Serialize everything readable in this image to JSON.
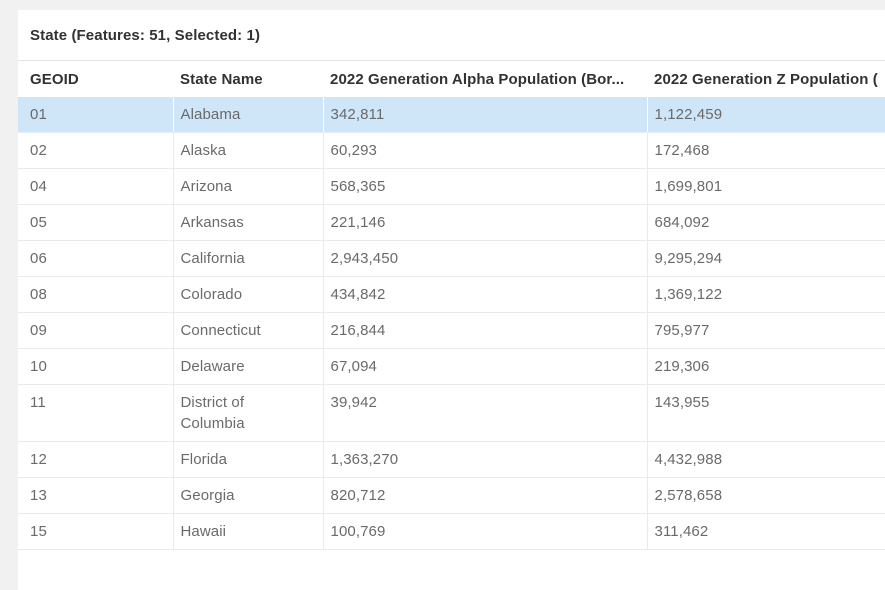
{
  "header": {
    "title": "State (Features: 51, Selected: 1)"
  },
  "table": {
    "columns": [
      {
        "key": "geoid",
        "label": "GEOID"
      },
      {
        "key": "state_name",
        "label": "State Name"
      },
      {
        "key": "gen_alpha",
        "label": "2022 Generation Alpha Population (Bor..."
      },
      {
        "key": "gen_z",
        "label": "2022 Generation Z Population ("
      }
    ],
    "rows": [
      {
        "geoid": "01",
        "state_name": "Alabama",
        "gen_alpha": "342,811",
        "gen_z": "1,122,459",
        "selected": true
      },
      {
        "geoid": "02",
        "state_name": "Alaska",
        "gen_alpha": "60,293",
        "gen_z": "172,468",
        "selected": false
      },
      {
        "geoid": "04",
        "state_name": "Arizona",
        "gen_alpha": "568,365",
        "gen_z": "1,699,801",
        "selected": false
      },
      {
        "geoid": "05",
        "state_name": "Arkansas",
        "gen_alpha": "221,146",
        "gen_z": "684,092",
        "selected": false
      },
      {
        "geoid": "06",
        "state_name": "California",
        "gen_alpha": "2,943,450",
        "gen_z": "9,295,294",
        "selected": false
      },
      {
        "geoid": "08",
        "state_name": "Colorado",
        "gen_alpha": "434,842",
        "gen_z": "1,369,122",
        "selected": false
      },
      {
        "geoid": "09",
        "state_name": "Connecticut",
        "gen_alpha": "216,844",
        "gen_z": "795,977",
        "selected": false
      },
      {
        "geoid": "10",
        "state_name": "Delaware",
        "gen_alpha": "67,094",
        "gen_z": "219,306",
        "selected": false
      },
      {
        "geoid": "11",
        "state_name": "District of Columbia",
        "gen_alpha": "39,942",
        "gen_z": "143,955",
        "selected": false
      },
      {
        "geoid": "12",
        "state_name": "Florida",
        "gen_alpha": "1,363,270",
        "gen_z": "4,432,988",
        "selected": false
      },
      {
        "geoid": "13",
        "state_name": "Georgia",
        "gen_alpha": "820,712",
        "gen_z": "2,578,658",
        "selected": false
      },
      {
        "geoid": "15",
        "state_name": "Hawaii",
        "gen_alpha": "100,769",
        "gen_z": "311,462",
        "selected": false
      }
    ]
  },
  "colors": {
    "page_bg": "#f1f1f1",
    "panel_bg": "#ffffff",
    "header_text": "#323232",
    "body_text": "#6a6a6a",
    "row_border": "#eaeaea",
    "title_divider": "#e4e4e4",
    "selected_row_bg": "#cfe5f8"
  }
}
